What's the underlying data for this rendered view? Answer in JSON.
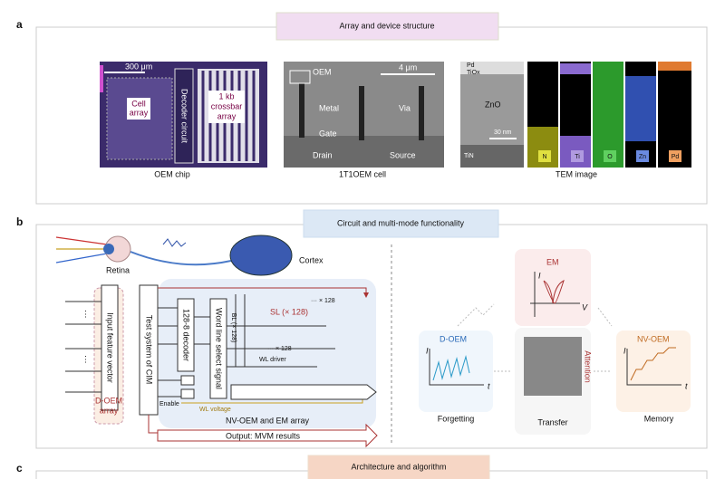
{
  "panels": [
    {
      "label": "a",
      "title": "Array and device structure",
      "captions": [
        "OEM chip",
        "1T1OEM cell",
        "TEM image"
      ],
      "chip": {
        "scale": "300 μm",
        "cell_array": [
          "Cell",
          "array"
        ],
        "decoder": "Decoder circuit",
        "crossbar": [
          "1 kb",
          "crossbar",
          "array"
        ]
      },
      "cell": {
        "oem": "OEM",
        "scale": "4 μm",
        "metal": "Metal",
        "gate": "Gate",
        "via": "Via",
        "drain": "Drain",
        "source": "Source"
      },
      "tem": {
        "layers": [
          "Pd",
          "TiOx",
          "ZnO",
          "TiN"
        ],
        "scale": "30 nm",
        "elements": [
          "N",
          "Ti",
          "O",
          "Zn",
          "Pd"
        ]
      }
    },
    {
      "label": "b",
      "title": "Circuit and multi-mode functionality",
      "bio": {
        "retina": "Retina",
        "cortex": "Cortex"
      },
      "circuit": {
        "input": "Input feature vector",
        "test": "Test system of CIM",
        "decoder": "128-8 decoder",
        "wl_select": "Word line select signal",
        "sl": "SL (× 128)",
        "bl": "BL (× 128)",
        "dots1": "··· × 128",
        "dots2": "··· × 128",
        "wl_driver": "WL driver",
        "enable": "Enable",
        "wl_voltage": "WL voltage",
        "array": "NV-OEM and EM array",
        "output": "Output: MVM results",
        "doem_array": [
          "D-OEM",
          "array"
        ]
      },
      "modes": {
        "doem": "D-OEM",
        "forgetting": "Forgetting",
        "em": "EM",
        "attention": "Attention",
        "transfer": "Transfer",
        "nvoem": "NV-OEM",
        "memory": "Memory",
        "axis_i": "I",
        "axis_t": "t",
        "axis_v": "V"
      }
    },
    {
      "label": "c",
      "title": "Architecture and algorithm"
    }
  ]
}
